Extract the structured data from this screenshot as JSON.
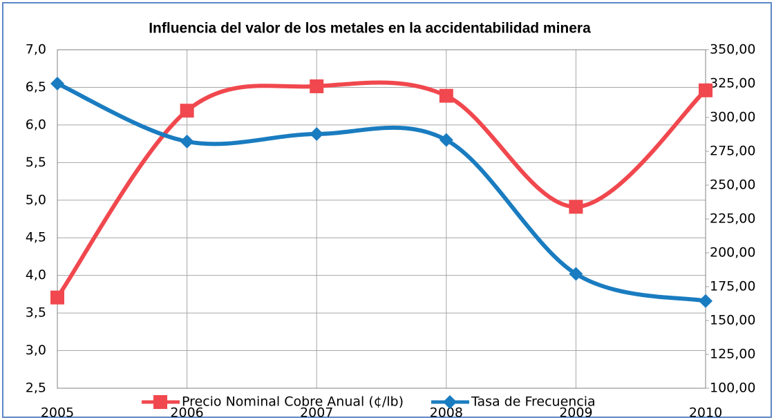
{
  "chart_data": {
    "type": "line",
    "title": "Influencia del valor de los metales en la accidentabilidad minera",
    "categories": [
      "2005",
      "2006",
      "2007",
      "2008",
      "2009",
      "2010"
    ],
    "series": [
      {
        "name": "Precio Nominal Cobre Anual (¢/lb)",
        "color": "#f0484e",
        "marker": "square",
        "axis": "y2",
        "values": [
          167,
          305,
          323,
          316,
          234,
          320
        ]
      },
      {
        "name": "Tasa de Frecuencia",
        "color": "#1a7cc0",
        "marker": "diamond",
        "values": [
          6.55,
          5.78,
          5.88,
          5.8,
          4.02,
          3.66
        ]
      }
    ],
    "ylim": [
      2.5,
      7.0
    ],
    "yticks": [
      {
        "value": 2.5,
        "label": "2,5"
      },
      {
        "value": 3.0,
        "label": "3,0"
      },
      {
        "value": 3.5,
        "label": "3,5"
      },
      {
        "value": 4.0,
        "label": "4,0"
      },
      {
        "value": 4.5,
        "label": "4,5"
      },
      {
        "value": 5.0,
        "label": "5,0"
      },
      {
        "value": 5.5,
        "label": "5,5"
      },
      {
        "value": 6.0,
        "label": "6,0"
      },
      {
        "value": 6.5,
        "label": "6,5"
      },
      {
        "value": 7.0,
        "label": "7,0"
      }
    ],
    "y2lim": [
      100,
      350
    ],
    "y2ticks": [
      {
        "value": 100,
        "label": "100,00"
      },
      {
        "value": 125,
        "label": "125,00"
      },
      {
        "value": 150,
        "label": "150,00"
      },
      {
        "value": 175,
        "label": "175,00"
      },
      {
        "value": 200,
        "label": "200,00"
      },
      {
        "value": 225,
        "label": "225,00"
      },
      {
        "value": 250,
        "label": "250,00"
      },
      {
        "value": 275,
        "label": "275,00"
      },
      {
        "value": 300,
        "label": "300,00"
      },
      {
        "value": 325,
        "label": "325,00"
      },
      {
        "value": 350,
        "label": "350,00"
      }
    ],
    "grid": true,
    "legend": "bottom"
  }
}
